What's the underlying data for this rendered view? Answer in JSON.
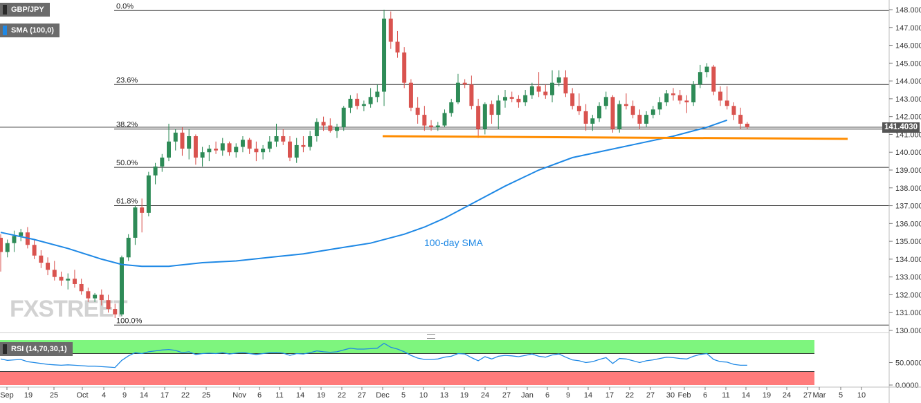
{
  "legend": {
    "pair": "GBP/JPY",
    "indicator": "SMA (100,0)",
    "indicator_color": "#1e88e5",
    "rsi": "RSI (14,70,30,1)"
  },
  "watermark": "FXSTREET",
  "price_tag": "141.4030",
  "chart_data": {
    "type": "candlestick",
    "title": "",
    "ylim": [
      130.0,
      148.0
    ],
    "y_ticks": [
      "148.0000",
      "147.0000",
      "146.0000",
      "145.0000",
      "144.0000",
      "143.0000",
      "142.0000",
      "141.0000",
      "140.0000",
      "139.0000",
      "138.0000",
      "137.0000",
      "136.0000",
      "135.0000",
      "134.0000",
      "133.0000",
      "132.0000",
      "131.0000",
      "130.0000"
    ],
    "x_ticks": [
      "Sep",
      "19",
      "25",
      "Oct",
      "4",
      "9",
      "14",
      "17",
      "22",
      "25",
      "Nov",
      "6",
      "11",
      "14",
      "19",
      "22",
      "27",
      "Dec",
      "5",
      "10",
      "13",
      "19",
      "24",
      "27",
      "Jan",
      "6",
      "9",
      "14",
      "17",
      "22",
      "27",
      "30",
      "Feb",
      "6",
      "11",
      "14",
      "19",
      "24",
      "27",
      "Mar",
      "5",
      "10"
    ],
    "colors": {
      "up": "#2e8b57",
      "down": "#d9534f",
      "sma": "#1e88e5",
      "support": "#ff8c00",
      "fib": "#333333"
    },
    "fib_levels": [
      {
        "label": "0.0%",
        "value": 147.95
      },
      {
        "label": "23.6%",
        "value": 143.8
      },
      {
        "label": "38.2%",
        "value": 141.3
      },
      {
        "label": "50.0%",
        "value": 139.15
      },
      {
        "label": "61.8%",
        "value": 137.0
      },
      {
        "label": "100.0%",
        "value": 130.3
      }
    ],
    "last_price": 141.403,
    "support_line": {
      "from": 140.9,
      "to": 140.75
    },
    "annotation": "100-day SMA",
    "candles": [
      [
        135.2,
        135.4,
        133.3,
        134.4
      ],
      [
        134.4,
        135.1,
        134.1,
        134.9
      ],
      [
        134.9,
        135.6,
        134.4,
        135.3
      ],
      [
        135.3,
        135.7,
        135.0,
        135.5
      ],
      [
        135.5,
        135.8,
        134.6,
        134.8
      ],
      [
        134.8,
        135.1,
        134.0,
        134.2
      ],
      [
        134.2,
        134.5,
        133.5,
        133.8
      ],
      [
        133.8,
        134.1,
        133.1,
        133.4
      ],
      [
        133.4,
        133.9,
        132.8,
        133.0
      ],
      [
        133.0,
        133.3,
        132.5,
        132.8
      ],
      [
        132.8,
        133.2,
        132.3,
        132.9
      ],
      [
        132.9,
        133.4,
        132.4,
        132.6
      ],
      [
        132.6,
        132.9,
        132.0,
        132.2
      ],
      [
        132.2,
        132.4,
        131.6,
        131.8
      ],
      [
        131.8,
        132.1,
        131.6,
        132.0
      ],
      [
        132.0,
        132.3,
        131.4,
        131.7
      ],
      [
        131.7,
        132.0,
        131.0,
        131.2
      ],
      [
        131.2,
        131.5,
        130.7,
        130.9
      ],
      [
        130.9,
        134.2,
        130.8,
        134.1
      ],
      [
        134.1,
        135.4,
        133.9,
        135.2
      ],
      [
        135.2,
        137.0,
        134.8,
        136.9
      ],
      [
        136.9,
        137.4,
        135.5,
        136.6
      ],
      [
        136.6,
        138.9,
        136.4,
        138.7
      ],
      [
        138.7,
        139.4,
        138.2,
        139.2
      ],
      [
        139.2,
        139.9,
        138.9,
        139.7
      ],
      [
        139.7,
        141.6,
        139.5,
        140.6
      ],
      [
        140.6,
        141.3,
        140.1,
        141.1
      ],
      [
        141.1,
        141.4,
        139.8,
        140.2
      ],
      [
        140.2,
        141.3,
        139.6,
        140.9
      ],
      [
        140.9,
        141.0,
        139.3,
        139.7
      ],
      [
        139.7,
        140.3,
        139.2,
        140.0
      ],
      [
        140.0,
        140.4,
        139.5,
        140.2
      ],
      [
        140.2,
        140.6,
        139.9,
        140.1
      ],
      [
        140.1,
        140.8,
        139.8,
        140.5
      ],
      [
        140.5,
        140.6,
        139.8,
        140.0
      ],
      [
        140.0,
        140.5,
        139.7,
        140.3
      ],
      [
        140.3,
        140.9,
        140.0,
        140.7
      ],
      [
        140.7,
        140.8,
        139.9,
        140.2
      ],
      [
        140.2,
        140.6,
        139.5,
        140.0
      ],
      [
        140.0,
        140.4,
        139.6,
        140.2
      ],
      [
        140.2,
        140.9,
        140.0,
        140.6
      ],
      [
        140.6,
        141.6,
        140.3,
        140.9
      ],
      [
        140.9,
        141.3,
        140.4,
        140.6
      ],
      [
        140.6,
        140.9,
        139.5,
        139.7
      ],
      [
        139.7,
        140.8,
        139.4,
        140.4
      ],
      [
        140.4,
        140.9,
        140.0,
        140.3
      ],
      [
        140.3,
        141.2,
        140.1,
        140.9
      ],
      [
        140.9,
        141.9,
        140.6,
        141.7
      ],
      [
        141.7,
        142.0,
        141.2,
        141.5
      ],
      [
        141.5,
        141.9,
        141.1,
        141.2
      ],
      [
        141.2,
        141.6,
        140.8,
        141.4
      ],
      [
        141.4,
        142.6,
        141.2,
        142.5
      ],
      [
        142.5,
        143.2,
        142.2,
        143.0
      ],
      [
        143.0,
        143.3,
        142.4,
        142.6
      ],
      [
        142.6,
        142.9,
        142.3,
        142.7
      ],
      [
        142.7,
        143.6,
        142.5,
        143.1
      ],
      [
        143.1,
        143.8,
        142.8,
        143.4
      ],
      [
        143.4,
        148.0,
        142.6,
        147.5
      ],
      [
        147.5,
        147.9,
        145.8,
        146.2
      ],
      [
        146.2,
        146.8,
        145.3,
        145.6
      ],
      [
        145.6,
        145.9,
        143.6,
        143.9
      ],
      [
        143.9,
        144.1,
        142.3,
        142.5
      ],
      [
        142.5,
        143.1,
        141.6,
        142.1
      ],
      [
        142.1,
        142.6,
        141.2,
        141.5
      ],
      [
        141.5,
        141.8,
        141.2,
        141.4
      ],
      [
        141.4,
        141.7,
        141.2,
        141.5
      ],
      [
        141.5,
        142.4,
        141.4,
        142.2
      ],
      [
        142.2,
        143.0,
        142.0,
        142.8
      ],
      [
        142.8,
        144.4,
        142.7,
        143.9
      ],
      [
        143.9,
        144.1,
        143.6,
        143.8
      ],
      [
        143.8,
        144.3,
        142.4,
        142.6
      ],
      [
        142.6,
        143.0,
        140.8,
        141.3
      ],
      [
        141.3,
        142.8,
        141.0,
        142.7
      ],
      [
        142.7,
        142.9,
        141.6,
        142.1
      ],
      [
        142.1,
        143.2,
        141.3,
        142.9
      ],
      [
        142.9,
        143.5,
        142.5,
        143.1
      ],
      [
        143.1,
        143.4,
        142.8,
        143.0
      ],
      [
        143.0,
        143.2,
        142.5,
        142.8
      ],
      [
        142.8,
        143.5,
        142.6,
        143.2
      ],
      [
        143.2,
        143.9,
        143.0,
        143.7
      ],
      [
        143.7,
        144.5,
        143.1,
        143.4
      ],
      [
        143.4,
        143.8,
        143.0,
        143.2
      ],
      [
        143.2,
        144.6,
        142.8,
        143.9
      ],
      [
        143.9,
        144.6,
        143.7,
        144.2
      ],
      [
        144.2,
        144.6,
        143.1,
        143.3
      ],
      [
        143.3,
        143.6,
        142.4,
        142.6
      ],
      [
        142.6,
        143.3,
        142.1,
        142.3
      ],
      [
        142.3,
        142.7,
        141.2,
        141.6
      ],
      [
        141.6,
        142.1,
        141.2,
        141.9
      ],
      [
        141.9,
        142.8,
        141.7,
        142.6
      ],
      [
        142.6,
        143.4,
        142.4,
        143.1
      ],
      [
        143.1,
        143.2,
        141.1,
        141.3
      ],
      [
        141.3,
        142.9,
        141.1,
        142.7
      ],
      [
        142.7,
        143.3,
        142.4,
        142.6
      ],
      [
        142.6,
        142.9,
        141.9,
        142.1
      ],
      [
        142.1,
        142.4,
        141.3,
        141.6
      ],
      [
        141.6,
        142.3,
        141.4,
        142.1
      ],
      [
        142.1,
        142.6,
        141.9,
        142.4
      ],
      [
        142.4,
        143.1,
        142.1,
        142.8
      ],
      [
        142.8,
        143.5,
        142.6,
        143.3
      ],
      [
        143.3,
        143.6,
        142.9,
        143.2
      ],
      [
        143.2,
        143.5,
        142.7,
        142.9
      ],
      [
        142.9,
        143.2,
        142.2,
        142.8
      ],
      [
        142.8,
        144.0,
        142.6,
        143.8
      ],
      [
        143.8,
        144.9,
        143.6,
        144.5
      ],
      [
        144.5,
        145.0,
        144.2,
        144.8
      ],
      [
        144.8,
        144.9,
        143.2,
        143.4
      ],
      [
        143.4,
        143.7,
        142.6,
        142.9
      ],
      [
        142.9,
        143.7,
        142.4,
        142.6
      ],
      [
        142.6,
        142.8,
        141.8,
        142.1
      ],
      [
        142.1,
        142.5,
        141.3,
        141.6
      ],
      [
        141.6,
        141.7,
        141.3,
        141.4
      ]
    ],
    "sma_points": [
      [
        0,
        135.5
      ],
      [
        5,
        135.1
      ],
      [
        10,
        134.6
      ],
      [
        15,
        134.0
      ],
      [
        18,
        133.7
      ],
      [
        21,
        133.6
      ],
      [
        25,
        133.6
      ],
      [
        30,
        133.8
      ],
      [
        35,
        133.9
      ],
      [
        40,
        134.1
      ],
      [
        45,
        134.3
      ],
      [
        50,
        134.6
      ],
      [
        55,
        134.9
      ],
      [
        60,
        135.4
      ],
      [
        63,
        135.8
      ],
      [
        66,
        136.3
      ],
      [
        70,
        137.1
      ],
      [
        75,
        138.1
      ],
      [
        80,
        139.0
      ],
      [
        85,
        139.7
      ],
      [
        90,
        140.1
      ],
      [
        95,
        140.5
      ],
      [
        100,
        140.9
      ],
      [
        105,
        141.4
      ],
      [
        108,
        141.8
      ]
    ],
    "rsi": {
      "ylim": [
        0,
        100
      ],
      "overbought": 70,
      "oversold": 30,
      "y_ticks": [
        "50.0000",
        "0.0000"
      ],
      "values": [
        58,
        55,
        56,
        57,
        52,
        50,
        48,
        46,
        45,
        44,
        45,
        44,
        43,
        42,
        42,
        41,
        40,
        39,
        55,
        65,
        72,
        70,
        74,
        76,
        78,
        79,
        77,
        72,
        74,
        68,
        70,
        71,
        70,
        72,
        69,
        71,
        73,
        70,
        68,
        70,
        72,
        73,
        71,
        66,
        70,
        69,
        72,
        76,
        74,
        73,
        74,
        78,
        82,
        80,
        80,
        81,
        82,
        93,
        84,
        80,
        74,
        66,
        60,
        57,
        57,
        58,
        62,
        64,
        70,
        69,
        61,
        54,
        63,
        58,
        64,
        66,
        65,
        63,
        66,
        69,
        64,
        62,
        67,
        69,
        62,
        56,
        54,
        50,
        52,
        57,
        61,
        48,
        59,
        58,
        54,
        50,
        54,
        56,
        59,
        62,
        61,
        59,
        58,
        64,
        68,
        70,
        57,
        52,
        51,
        46,
        44,
        44
      ]
    }
  }
}
